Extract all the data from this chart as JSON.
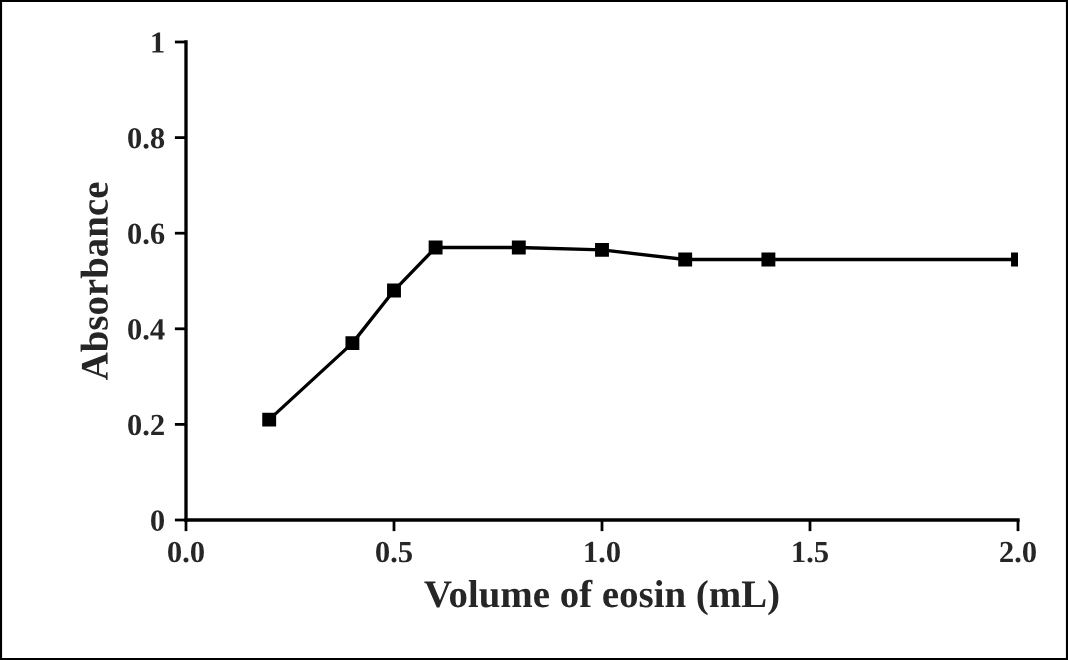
{
  "chart_data": {
    "type": "line",
    "xlabel": "Volume of eosin (mL)",
    "ylabel": "Absorbance",
    "x": [
      0.2,
      0.4,
      0.5,
      0.6,
      0.8,
      1.0,
      1.2,
      1.4,
      2.0
    ],
    "series": [
      {
        "color": "#000000",
        "values": [
          0.21,
          0.37,
          0.48,
          0.57,
          0.57,
          0.565,
          0.545,
          0.545,
          0.545
        ]
      }
    ],
    "xlim": [
      0,
      2
    ],
    "xticks": [
      {
        "value": 0,
        "label": "0.0"
      },
      {
        "value": 0.5,
        "label": "0.5"
      },
      {
        "value": 1,
        "label": "1.0"
      },
      {
        "value": 1.5,
        "label": "1.5"
      },
      {
        "value": 2,
        "label": "2.0"
      }
    ],
    "ylim": [
      0,
      1
    ],
    "yticks": [
      0,
      0.2,
      0.4,
      0.6,
      0.8,
      1
    ],
    "marker": "square",
    "line_style": "solid",
    "grid": false,
    "legend": false
  }
}
